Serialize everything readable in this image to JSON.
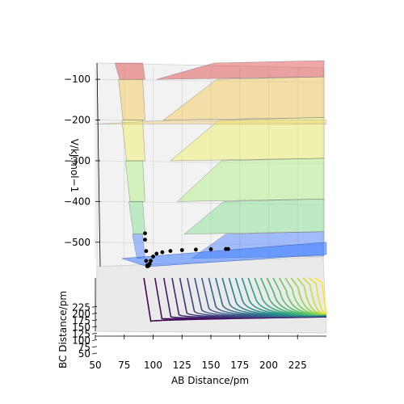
{
  "chart_data": {
    "type": "surface-3d",
    "xlabel": "AB Distance/pm",
    "ylabel": "BC Distance/pm",
    "zlabel": "V/kJ.mol−1",
    "x_ticks": [
      "50",
      "75",
      "100",
      "125",
      "150",
      "175",
      "200",
      "225"
    ],
    "y_ticks": [
      "50",
      "75",
      "100",
      "125",
      "150",
      "175",
      "200",
      "225"
    ],
    "z_ticks": [
      "−100",
      "−200",
      "−300",
      "−400",
      "−500"
    ],
    "z_tick_values": [
      -100,
      -200,
      -300,
      -400,
      -500
    ],
    "xlim": [
      50,
      250
    ],
    "ylim": [
      50,
      250
    ],
    "zlim": [
      -560,
      -60
    ],
    "well_depth": -560,
    "plateau_level": -200,
    "colormap": "viridis",
    "surface_colors": [
      "#e33b3b",
      "#f5c64e",
      "#eef05a",
      "#aef07a",
      "#7ce08a",
      "#3d7bff"
    ],
    "trajectory_color": "#000000",
    "trajectory": {
      "ab": [
        93,
        93,
        94,
        94,
        95,
        95,
        96,
        96,
        97,
        98,
        100,
        103,
        108,
        115,
        125,
        137,
        150,
        163,
        165
      ],
      "bc": [
        240,
        200,
        170,
        145,
        128,
        118,
        112,
        108,
        105,
        103,
        101,
        100,
        99,
        98,
        97,
        96,
        96,
        95,
        95
      ],
      "v": [
        -445,
        -470,
        -505,
        -535,
        -550,
        -555,
        -555,
        -555,
        -552,
        -545,
        -535,
        -528,
        -525,
        -522,
        -520,
        -519,
        -518,
        -518,
        -518
      ]
    }
  }
}
